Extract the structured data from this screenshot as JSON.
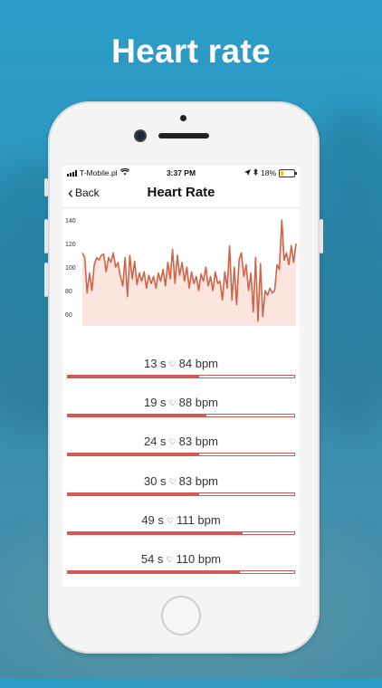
{
  "headline": "Heart rate",
  "status": {
    "carrier": "T-Mobile.pl",
    "time": "3:37 PM",
    "battery": "18%"
  },
  "nav": {
    "back_label": "Back",
    "title": "Heart Rate"
  },
  "colors": {
    "accent": "#cf5c5a",
    "line": "#d0644a",
    "area": "#fbe6df"
  },
  "chart_data": {
    "type": "line",
    "title": "",
    "xlabel": "",
    "ylabel": "",
    "ylim": [
      50,
      150
    ],
    "yticks": [
      140,
      120,
      100,
      80,
      60
    ],
    "series": [
      {
        "values": [
          112,
          108,
          78,
          95,
          80,
          102,
          108,
          106,
          110,
          111,
          96,
          108,
          104,
          112,
          100,
          104,
          92,
          84,
          108,
          75,
          110,
          90,
          105,
          85,
          95,
          88,
          96,
          82,
          93,
          86,
          92,
          82,
          95,
          88,
          98,
          84,
          104,
          90,
          115,
          86,
          110,
          93,
          104,
          88,
          100,
          82,
          96,
          86,
          92,
          80,
          94,
          88,
          100,
          84,
          92,
          80,
          96,
          86,
          88,
          72,
          96,
          82,
          118,
          72,
          100,
          68,
          106,
          112,
          92,
          102,
          80,
          95,
          62,
          108,
          54,
          103,
          58,
          80,
          76,
          82,
          78,
          80,
          102,
          98,
          140,
          106,
          112,
          102,
          118,
          104,
          120
        ]
      }
    ]
  },
  "entries": [
    {
      "time": "13 s",
      "bpm": "84 bpm",
      "fill": 0.58
    },
    {
      "time": "19 s",
      "bpm": "88 bpm",
      "fill": 0.61
    },
    {
      "time": "24 s",
      "bpm": "83 bpm",
      "fill": 0.58
    },
    {
      "time": "30 s",
      "bpm": "83 bpm",
      "fill": 0.58
    },
    {
      "time": "49 s",
      "bpm": "111 bpm",
      "fill": 0.77
    },
    {
      "time": "54 s",
      "bpm": "110 bpm",
      "fill": 0.76
    }
  ]
}
